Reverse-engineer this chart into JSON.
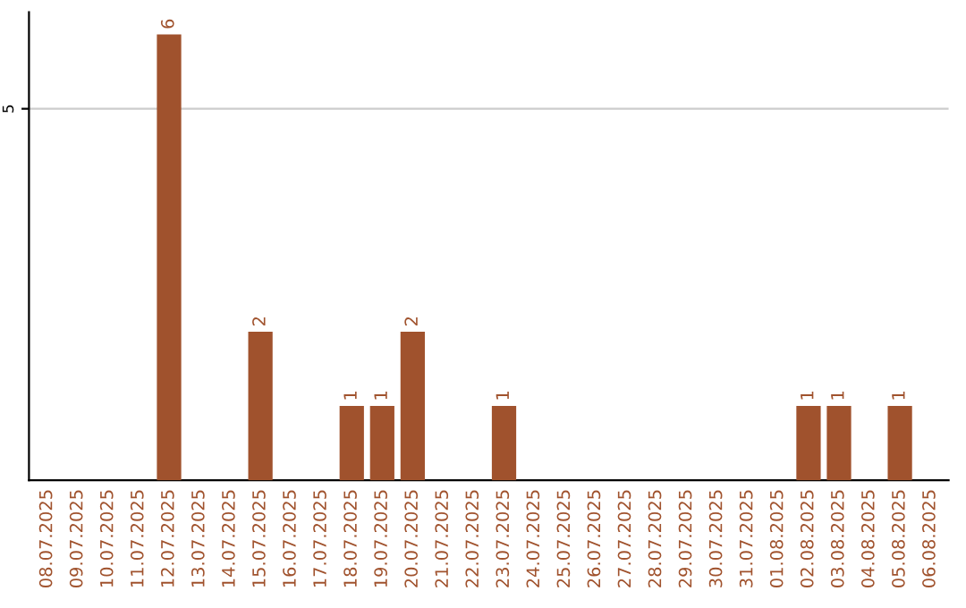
{
  "chart_data": {
    "type": "bar",
    "categories": [
      "08.07.2025",
      "09.07.2025",
      "10.07.2025",
      "11.07.2025",
      "12.07.2025",
      "13.07.2025",
      "14.07.2025",
      "15.07.2025",
      "16.07.2025",
      "17.07.2025",
      "18.07.2025",
      "19.07.2025",
      "20.07.2025",
      "21.07.2025",
      "22.07.2025",
      "23.07.2025",
      "24.07.2025",
      "25.07.2025",
      "26.07.2025",
      "27.07.2025",
      "28.07.2025",
      "29.07.2025",
      "30.07.2025",
      "31.07.2025",
      "01.08.2025",
      "02.08.2025",
      "03.08.2025",
      "04.08.2025",
      "05.08.2025",
      "06.08.2025"
    ],
    "values": [
      0,
      0,
      0,
      0,
      6,
      0,
      0,
      2,
      0,
      0,
      1,
      1,
      2,
      0,
      0,
      1,
      0,
      0,
      0,
      0,
      0,
      0,
      0,
      0,
      0,
      1,
      1,
      0,
      1,
      0
    ],
    "value_labels": [
      null,
      null,
      null,
      null,
      "6",
      null,
      null,
      "2",
      null,
      null,
      "1",
      "1",
      "2",
      null,
      null,
      "1",
      null,
      null,
      null,
      null,
      null,
      null,
      null,
      null,
      null,
      "1",
      "1",
      null,
      "1",
      null
    ],
    "color": "#a0522d",
    "ylim": [
      0,
      6.3
    ],
    "yticks": [
      5
    ],
    "grid": "y"
  }
}
